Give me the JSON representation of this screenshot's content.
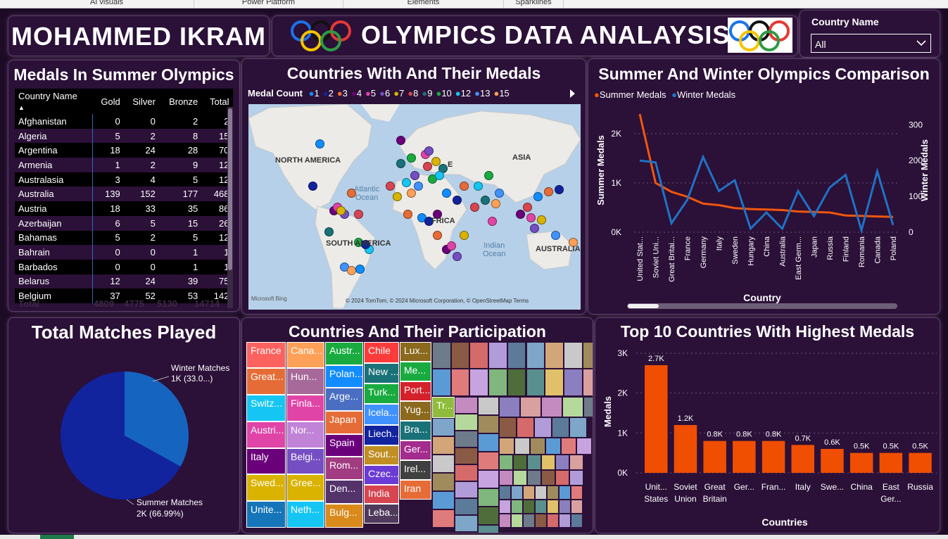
{
  "ribbon": {
    "items": [
      "AI visuals",
      "Power Platform",
      "Elements",
      "Sparklines"
    ]
  },
  "header": {
    "author": "MOHAMMED IKRAM",
    "title": "OLYMPICS DATA ANALAYSIS"
  },
  "filter": {
    "label": "Country Name",
    "value": "All"
  },
  "medal_table": {
    "title": "Medals In Summer Olympics",
    "columns": [
      "Country Name",
      "Gold",
      "Silver",
      "Bronze",
      "Total"
    ],
    "rows": [
      [
        "Afghanistan",
        "0",
        "0",
        "2",
        "2"
      ],
      [
        "Algeria",
        "5",
        "2",
        "8",
        "15"
      ],
      [
        "Argentina",
        "18",
        "24",
        "28",
        "70"
      ],
      [
        "Armenia",
        "1",
        "2",
        "9",
        "12"
      ],
      [
        "Australasia",
        "3",
        "4",
        "5",
        "12"
      ],
      [
        "Australia",
        "139",
        "152",
        "177",
        "468"
      ],
      [
        "Austria",
        "18",
        "33",
        "35",
        "86"
      ],
      [
        "Azerbaijan",
        "6",
        "5",
        "15",
        "26"
      ],
      [
        "Bahamas",
        "5",
        "2",
        "5",
        "12"
      ],
      [
        "Bahrain",
        "0",
        "0",
        "1",
        "1"
      ],
      [
        "Barbados",
        "0",
        "0",
        "1",
        "1"
      ],
      [
        "Belarus",
        "12",
        "24",
        "39",
        "75"
      ],
      [
        "Belgium",
        "37",
        "52",
        "53",
        "142"
      ]
    ],
    "total": [
      "Total",
      "4809",
      "4775",
      "5130",
      "14714"
    ]
  },
  "map": {
    "title": "Countries With And Their Medals",
    "legend_title": "Medal Count",
    "legend": [
      {
        "label": "1",
        "color": "#118dff"
      },
      {
        "label": "2",
        "color": "#12239e"
      },
      {
        "label": "3",
        "color": "#e66c37"
      },
      {
        "label": "4",
        "color": "#6b007b"
      },
      {
        "label": "5",
        "color": "#e044a7"
      },
      {
        "label": "6",
        "color": "#744ec2"
      },
      {
        "label": "7",
        "color": "#d9b300"
      },
      {
        "label": "8",
        "color": "#d64550"
      },
      {
        "label": "9",
        "color": "#197278"
      },
      {
        "label": "10",
        "color": "#1aab40"
      },
      {
        "label": "12",
        "color": "#15c6f4"
      },
      {
        "label": "13",
        "color": "#4092ff"
      },
      {
        "label": "15",
        "color": "#ffa058"
      }
    ],
    "labels": {
      "north_america": "NORTH AMERICA",
      "south_america": "SOUTH AMERICA",
      "asia": "ASIA",
      "europe": "E",
      "africa": "FRICA",
      "australia": "AUSTRALIA",
      "atlantic": "Atlantic",
      "atlantic2": "Ocean",
      "indian": "Indian",
      "indian2": "Ocean"
    },
    "attribution": "© 2024 TomTom, © 2024 Microsoft Corporation, © OpenStreetMap  Terms",
    "bing": "Microsoft Bing"
  },
  "comparison": {
    "title": "Summer And Winter Olympics Comparison",
    "legend": [
      {
        "label": "Summer Medals",
        "color": "#f0560e"
      },
      {
        "label": "Winter Medals",
        "color": "#1e73c6"
      }
    ],
    "xlabel": "Country",
    "ylabel_left": "Summer Medals",
    "ylabel_right": "Winter Medals",
    "yticks_left": [
      "2K",
      "1K",
      "0K"
    ],
    "yticks_right": [
      "300",
      "200",
      "100",
      "0"
    ]
  },
  "pie": {
    "title": "Total Matches Played",
    "label_winter_1": "Winter Matches",
    "label_winter_2": "1K (33.0...)",
    "label_summer_1": "Summer Matches",
    "label_summer_2": "2K (66.99%)",
    "colors": {
      "summer": "#12239e",
      "winter": "#1565c0"
    }
  },
  "treemap": {
    "title": "Countries And Their Participation",
    "labels": [
      "France",
      "Great...",
      "Switz...",
      "Austri...",
      "Italy",
      "Swed...",
      "Unite...",
      "Cana...",
      "Hun...",
      "Finla...",
      "Nor...",
      "Belgi...",
      "Gree...",
      "Neth...",
      "Austr...",
      "Polan...",
      "Arge...",
      "Japan",
      "Spain",
      "Rom...",
      "Den...",
      "Bulg...",
      "Chile",
      "New ...",
      "Turk...",
      "Icela...",
      "Liech...",
      "Sout...",
      "Czec...",
      "India",
      "Leba...",
      "Lux...",
      "Me...",
      "Port...",
      "Yug...",
      "Bra...",
      "Ger...",
      "Irel...",
      "Iran",
      "Mo...",
      "Tr..."
    ]
  },
  "top10": {
    "title": "Top 10 Countries With Highest Medals",
    "ylabel": "Medals",
    "xlabel": "Countries",
    "yticks": [
      "3K",
      "2K",
      "1K",
      "0K"
    ],
    "bar_labels": [
      "2.7K",
      "1.2K",
      "0.8K",
      "0.8K",
      "0.8K",
      "0.7K",
      "0.6K",
      "0.5K",
      "0.5K",
      "0.5K"
    ],
    "cat1": [
      "Unit...",
      "Soviet",
      "Great",
      "Ger...",
      "Fran...",
      "Italy",
      "Swe...",
      "China",
      "East",
      "Russia"
    ],
    "cat2": [
      "States",
      "Union",
      "Britain",
      "",
      "",
      "",
      "",
      "",
      "Ger...",
      ""
    ]
  },
  "chart_data": [
    {
      "type": "line",
      "title": "Summer And Winter Olympics Comparison",
      "categories": [
        "United Stat...",
        "Soviet Uni...",
        "Great Britai...",
        "France",
        "Germany",
        "Italy",
        "Sweden",
        "Hungary",
        "China",
        "Australia",
        "East Germ...",
        "Japan",
        "Russia",
        "Finland",
        "Romania",
        "Canada",
        "Poland"
      ],
      "xlabel": "Country",
      "series": [
        {
          "name": "Summer Medals",
          "axis": "left",
          "values": [
            2400,
            1000,
            820,
            720,
            580,
            550,
            490,
            470,
            460,
            450,
            420,
            410,
            400,
            340,
            330,
            320,
            310
          ]
        },
        {
          "name": "Winter Medals",
          "axis": "right",
          "values": [
            200,
            195,
            25,
            90,
            210,
            115,
            145,
            10,
            55,
            10,
            115,
            45,
            125,
            160,
            5,
            170,
            20
          ]
        }
      ],
      "ylim_left": [
        0,
        2400
      ],
      "ylim_right": [
        0,
        330
      ]
    },
    {
      "type": "pie",
      "title": "Total Matches Played",
      "slices": [
        {
          "label": "Winter Matches",
          "value": 33.01
        },
        {
          "label": "Summer Matches",
          "value": 66.99
        }
      ]
    },
    {
      "type": "bar",
      "title": "Top 10 Countries With Highest Medals",
      "categories": [
        "United States",
        "Soviet Union",
        "Great Britain",
        "Germany",
        "France",
        "Italy",
        "Sweden",
        "China",
        "East Germany",
        "Russia"
      ],
      "values": [
        2700,
        1200,
        800,
        800,
        800,
        700,
        600,
        500,
        500,
        500
      ],
      "xlabel": "Countries",
      "ylabel": "Medals",
      "ylim": [
        0,
        3000
      ]
    }
  ]
}
